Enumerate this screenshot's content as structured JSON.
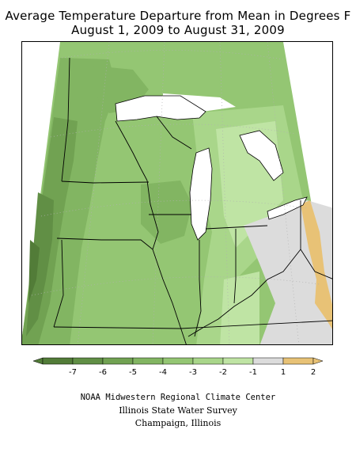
{
  "title": {
    "line1": "Average Temperature Departure from Mean in Degrees F",
    "line2": "August 1, 2009 to August 31, 2009"
  },
  "legend": {
    "bins": [
      {
        "color": "#527c38"
      },
      {
        "color": "#618f45"
      },
      {
        "color": "#71a252"
      },
      {
        "color": "#82b562"
      },
      {
        "color": "#94c673"
      },
      {
        "color": "#a9d68a"
      },
      {
        "color": "#bfe4a4"
      },
      {
        "color": "#dcdcdc"
      },
      {
        "color": "#e8c276"
      }
    ],
    "labels": [
      "-7",
      "-6",
      "-5",
      "-4",
      "-3",
      "-2",
      "-1",
      "1",
      "2"
    ]
  },
  "credits": {
    "line1": "NOAA Midwestern Regional Climate Center",
    "line2": "Illinois State Water Survey",
    "line3": "Champaign, Illinois"
  },
  "colors": {
    "lake": "#ffffff",
    "border": "#000000",
    "graticule": "#b0b0b0"
  }
}
